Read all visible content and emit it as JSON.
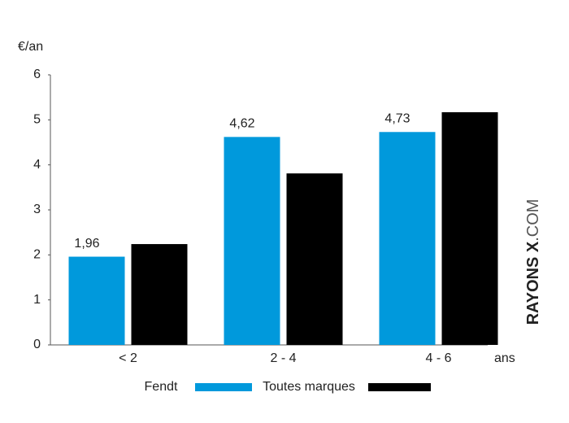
{
  "chart_data": {
    "type": "bar",
    "y_label": "€/an",
    "x_label": "ans",
    "categories": [
      "< 2",
      "2 - 4",
      "4 - 6"
    ],
    "series": [
      {
        "name": "Fendt",
        "color": "#0099dc",
        "values": [
          1.96,
          4.62,
          4.73
        ],
        "value_labels": [
          "1,96",
          "4,62",
          "4,73"
        ]
      },
      {
        "name": "Toutes marques",
        "color": "#000000",
        "values": [
          2.24,
          3.81,
          5.17
        ]
      }
    ],
    "ylim": [
      0,
      6
    ],
    "yticks": [
      0,
      1,
      2,
      3,
      4,
      5,
      6
    ],
    "grid": false,
    "watermark": [
      "RAYONS X",
      ".COM"
    ]
  }
}
